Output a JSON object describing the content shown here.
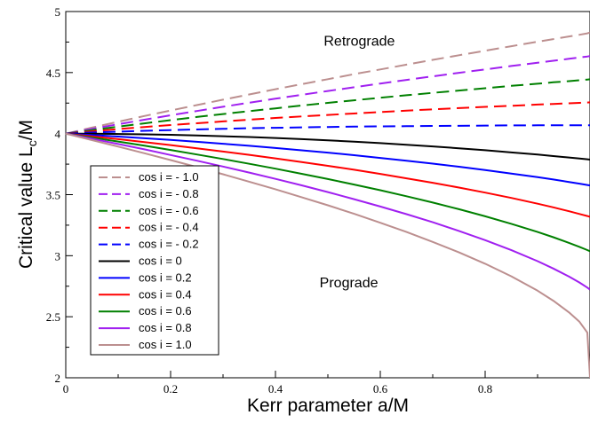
{
  "chart_data": {
    "type": "line",
    "xlabel": "Kerr parameter a/M",
    "ylabel_main": "Critical value L",
    "ylabel_sub": "c",
    "ylabel_tail": "/M",
    "xlim": [
      0,
      1
    ],
    "ylim": [
      2,
      5
    ],
    "x_ticks": [
      0,
      0.2,
      0.4,
      0.6,
      0.8
    ],
    "x_tick_labels": [
      "0",
      "0.2",
      "0.4",
      "0.6",
      "0.8"
    ],
    "y_ticks": [
      2,
      2.5,
      3,
      3.5,
      4,
      4.5,
      5
    ],
    "y_tick_labels": [
      "2",
      "2.5",
      "3",
      "3.5",
      "4",
      "4.5",
      "5"
    ],
    "grid": false,
    "legend_position": "left",
    "annotations": [
      {
        "text": "Retrograde",
        "x": 0.56,
        "y": 4.72
      },
      {
        "text": "Prograde",
        "x": 0.54,
        "y": 2.74
      }
    ],
    "x": [
      0,
      0.05,
      0.1,
      0.15,
      0.2,
      0.25,
      0.3,
      0.35,
      0.4,
      0.45,
      0.5,
      0.55,
      0.6,
      0.65,
      0.7,
      0.75,
      0.8,
      0.85,
      0.9,
      0.93,
      0.96,
      0.98,
      0.995,
      1.0
    ],
    "series": [
      {
        "name": "cos i = - 1.0",
        "color": "#bc8f8f",
        "dash": "dashed",
        "values": [
          4.0,
          4.049,
          4.097,
          4.144,
          4.189,
          4.234,
          4.278,
          4.321,
          4.364,
          4.405,
          4.446,
          4.487,
          4.526,
          4.565,
          4.604,
          4.642,
          4.679,
          4.716,
          4.753,
          4.774,
          4.796,
          4.81,
          4.821,
          4.828
        ]
      },
      {
        "name": "cos i = - 0.8",
        "color": "#a020f0",
        "dash": "dashed",
        "values": [
          4.0,
          4.039,
          4.077,
          4.114,
          4.15,
          4.185,
          4.22,
          4.253,
          4.286,
          4.318,
          4.349,
          4.38,
          4.41,
          4.44,
          4.469,
          4.498,
          4.526,
          4.554,
          4.581,
          4.597,
          4.613,
          4.624,
          4.632,
          4.635
        ]
      },
      {
        "name": "cos i = - 0.6",
        "color": "#008000",
        "dash": "dashed",
        "values": [
          4.0,
          4.029,
          4.057,
          4.084,
          4.11,
          4.136,
          4.16,
          4.184,
          4.207,
          4.23,
          4.252,
          4.273,
          4.294,
          4.314,
          4.334,
          4.353,
          4.372,
          4.391,
          4.409,
          4.42,
          4.43,
          4.437,
          4.443,
          4.445
        ]
      },
      {
        "name": "cos i = - 0.4",
        "color": "#ff0000",
        "dash": "dashed",
        "values": [
          4.0,
          4.019,
          4.037,
          4.054,
          4.07,
          4.085,
          4.1,
          4.114,
          4.128,
          4.141,
          4.153,
          4.165,
          4.177,
          4.188,
          4.199,
          4.209,
          4.219,
          4.228,
          4.238,
          4.243,
          4.248,
          4.252,
          4.255,
          4.256
        ]
      },
      {
        "name": "cos i = - 0.2",
        "color": "#0000ff",
        "dash": "dashed",
        "values": [
          4.0,
          4.009,
          4.016,
          4.023,
          4.029,
          4.034,
          4.039,
          4.044,
          4.048,
          4.051,
          4.054,
          4.057,
          4.059,
          4.061,
          4.063,
          4.064,
          4.066,
          4.067,
          4.068,
          4.068,
          4.068,
          4.068,
          4.068,
          4.068
        ]
      },
      {
        "name": "cos i = 0",
        "color": "#000000",
        "dash": "solid",
        "values": [
          4.0,
          3.999,
          3.997,
          3.994,
          3.99,
          3.985,
          3.979,
          3.972,
          3.964,
          3.955,
          3.945,
          3.934,
          3.922,
          3.909,
          3.895,
          3.88,
          3.864,
          3.846,
          3.828,
          3.816,
          3.804,
          3.796,
          3.79,
          3.787
        ]
      },
      {
        "name": "cos i = 0.2",
        "color": "#0000ff",
        "dash": "solid",
        "values": [
          4.0,
          3.988,
          3.976,
          3.962,
          3.948,
          3.933,
          3.917,
          3.9,
          3.882,
          3.863,
          3.844,
          3.823,
          3.801,
          3.778,
          3.754,
          3.729,
          3.702,
          3.673,
          3.643,
          3.624,
          3.604,
          3.59,
          3.579,
          3.575
        ]
      },
      {
        "name": "cos i = 0.4",
        "color": "#ff0000",
        "dash": "solid",
        "values": [
          4.0,
          3.978,
          3.955,
          3.931,
          3.906,
          3.88,
          3.853,
          3.826,
          3.797,
          3.767,
          3.736,
          3.704,
          3.67,
          3.634,
          3.597,
          3.558,
          3.517,
          3.473,
          3.426,
          3.396,
          3.364,
          3.342,
          3.325,
          3.318
        ]
      },
      {
        "name": "cos i = 0.6",
        "color": "#008000",
        "dash": "solid",
        "values": [
          4.0,
          3.968,
          3.935,
          3.901,
          3.866,
          3.829,
          3.792,
          3.753,
          3.713,
          3.671,
          3.628,
          3.583,
          3.536,
          3.487,
          3.435,
          3.381,
          3.323,
          3.261,
          3.194,
          3.151,
          3.105,
          3.072,
          3.046,
          3.036
        ]
      },
      {
        "name": "cos i = 0.8",
        "color": "#a020f0",
        "dash": "solid",
        "values": [
          4.0,
          3.958,
          3.915,
          3.871,
          3.825,
          3.778,
          3.73,
          3.681,
          3.629,
          3.576,
          3.521,
          3.463,
          3.403,
          3.34,
          3.274,
          3.203,
          3.127,
          3.045,
          2.955,
          2.895,
          2.829,
          2.78,
          2.739,
          2.722
        ]
      },
      {
        "name": "cos i = 1.0",
        "color": "#bc8f8f",
        "dash": "solid",
        "values": [
          4.0,
          3.947,
          3.894,
          3.839,
          3.783,
          3.726,
          3.667,
          3.606,
          3.544,
          3.479,
          3.413,
          3.343,
          3.27,
          3.194,
          3.113,
          3.027,
          2.934,
          2.831,
          2.713,
          2.631,
          2.535,
          2.458,
          2.37,
          2.0
        ]
      }
    ]
  }
}
